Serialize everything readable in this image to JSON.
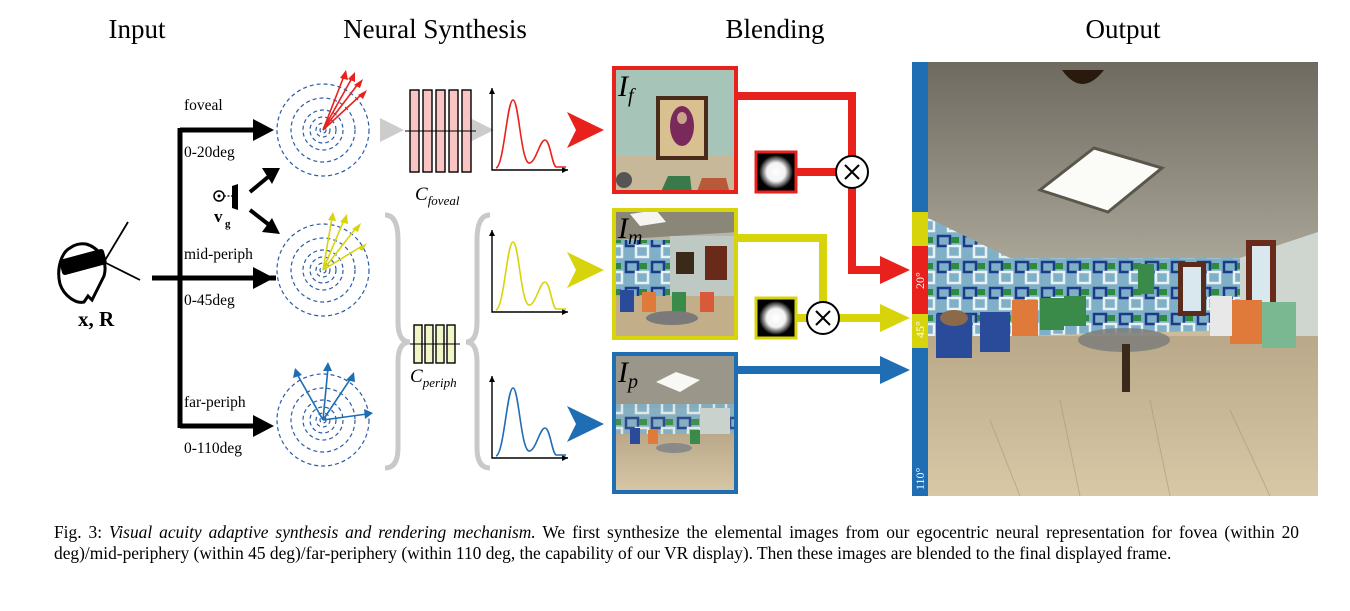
{
  "headers": {
    "input": "Input",
    "synthesis": "Neural Synthesis",
    "blending": "Blending",
    "output": "Output"
  },
  "input": {
    "pose_label": "x, R",
    "gaze_label": "v",
    "gaze_sub": "g"
  },
  "branches": [
    {
      "name": "foveal",
      "range": "0-20deg",
      "color": "#e8211d"
    },
    {
      "name": "mid-periph",
      "range": "0-45deg",
      "color": "#d8d40c"
    },
    {
      "name": "far-periph",
      "range": "0-110deg",
      "color": "#1f6db3"
    }
  ],
  "networks": {
    "foveal": {
      "label": "C",
      "sub": "foveal",
      "color": "#f9c4c4"
    },
    "periph": {
      "label": "C",
      "sub": "periph",
      "color": "#f2f5c6"
    }
  },
  "images": {
    "foveal": {
      "label": "I",
      "sub": "f"
    },
    "mid": {
      "label": "I",
      "sub": "m"
    },
    "far": {
      "label": "I",
      "sub": "p"
    }
  },
  "output_bar": {
    "labels": [
      "20°",
      "45°",
      "110°"
    ],
    "colors": {
      "blue": "#1f6db3",
      "yellow": "#d8d40c",
      "red": "#e8211d"
    }
  },
  "caption": {
    "prefix": "Fig. 3:",
    "title": "Visual acuity adaptive synthesis and rendering mechanism.",
    "body": "We first synthesize the elemental images from our egocentric neural representation for fovea (within 20 deg)/mid-periphery (within 45 deg)/far-periphery (within 110 deg, the capability of our VR display). Then these images are blended to the final displayed frame."
  }
}
